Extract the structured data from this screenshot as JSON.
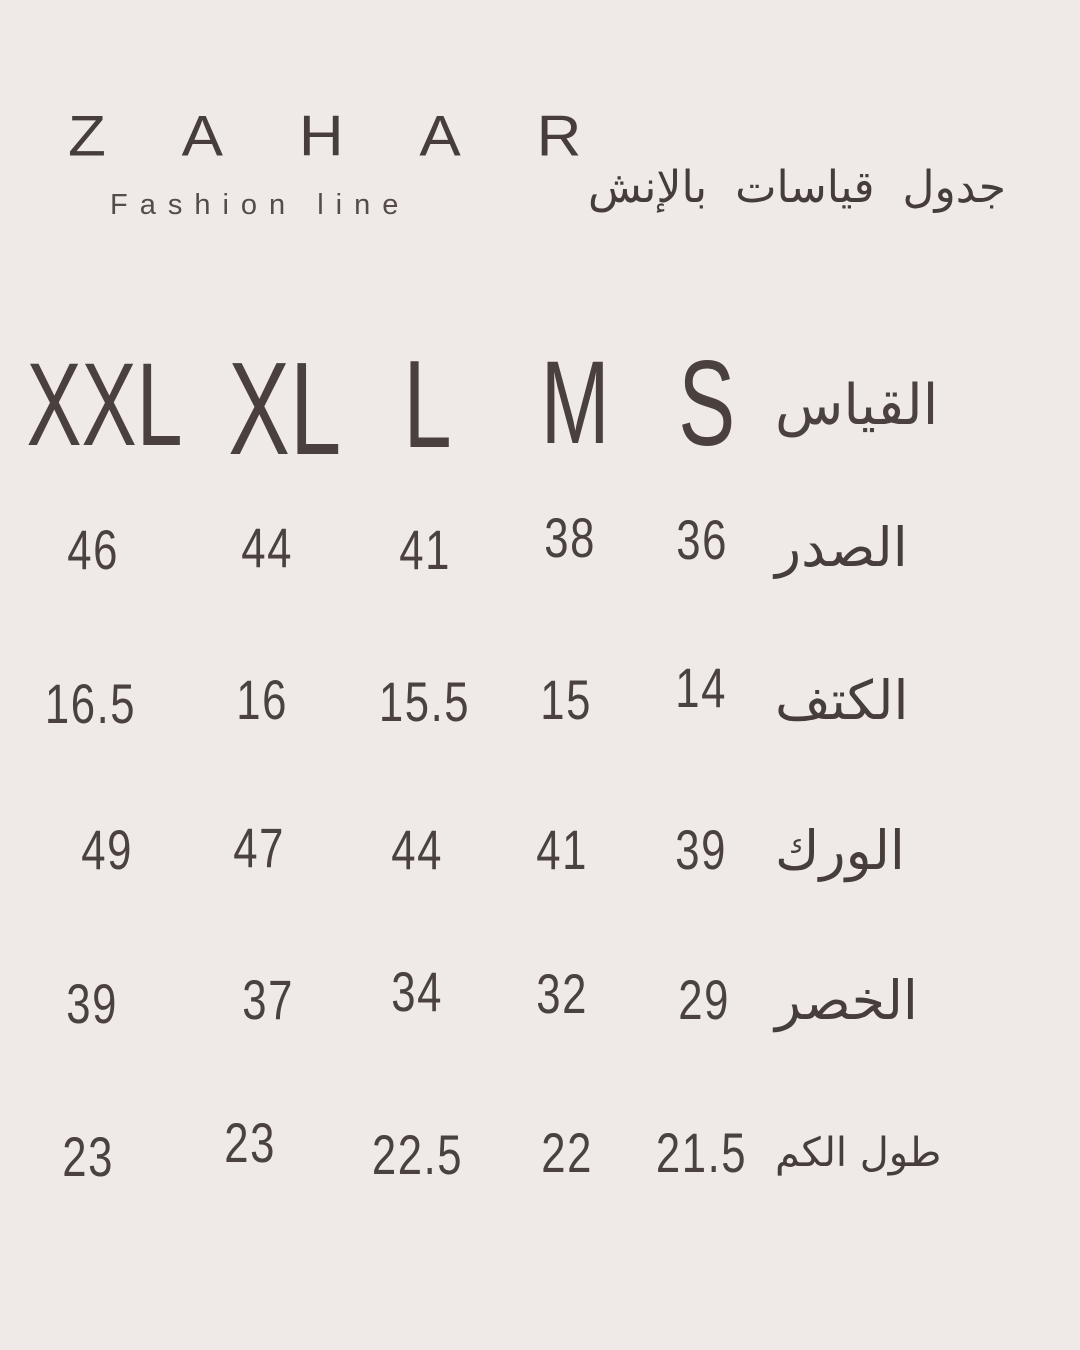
{
  "brand": {
    "name": "Z A H A R",
    "tagline": "Fashion line"
  },
  "title": "جدول  قياسات بالإنش",
  "colors": {
    "background": "#efe9e8",
    "text": "#4b423f"
  },
  "chart_data": {
    "type": "table",
    "title": "جدول قياسات بالإنش",
    "unit": "inch",
    "size_header_label": "القياس",
    "sizes": [
      "XXL",
      "XL",
      "L",
      "M",
      "S"
    ],
    "rows": [
      {
        "label": "الصدر",
        "values": [
          "46",
          "44",
          "41",
          "38",
          "36"
        ]
      },
      {
        "label": "الكتف",
        "values": [
          "16.5",
          "16",
          "15.5",
          "15",
          "14"
        ]
      },
      {
        "label": "الورك",
        "values": [
          "49",
          "47",
          "44",
          "41",
          "39"
        ]
      },
      {
        "label": "الخصر",
        "values": [
          "39",
          "37",
          "34",
          "32",
          "29"
        ]
      },
      {
        "label": "طول الكم",
        "values": [
          "23",
          "23",
          "22.5",
          "22",
          "21.5"
        ]
      }
    ]
  }
}
